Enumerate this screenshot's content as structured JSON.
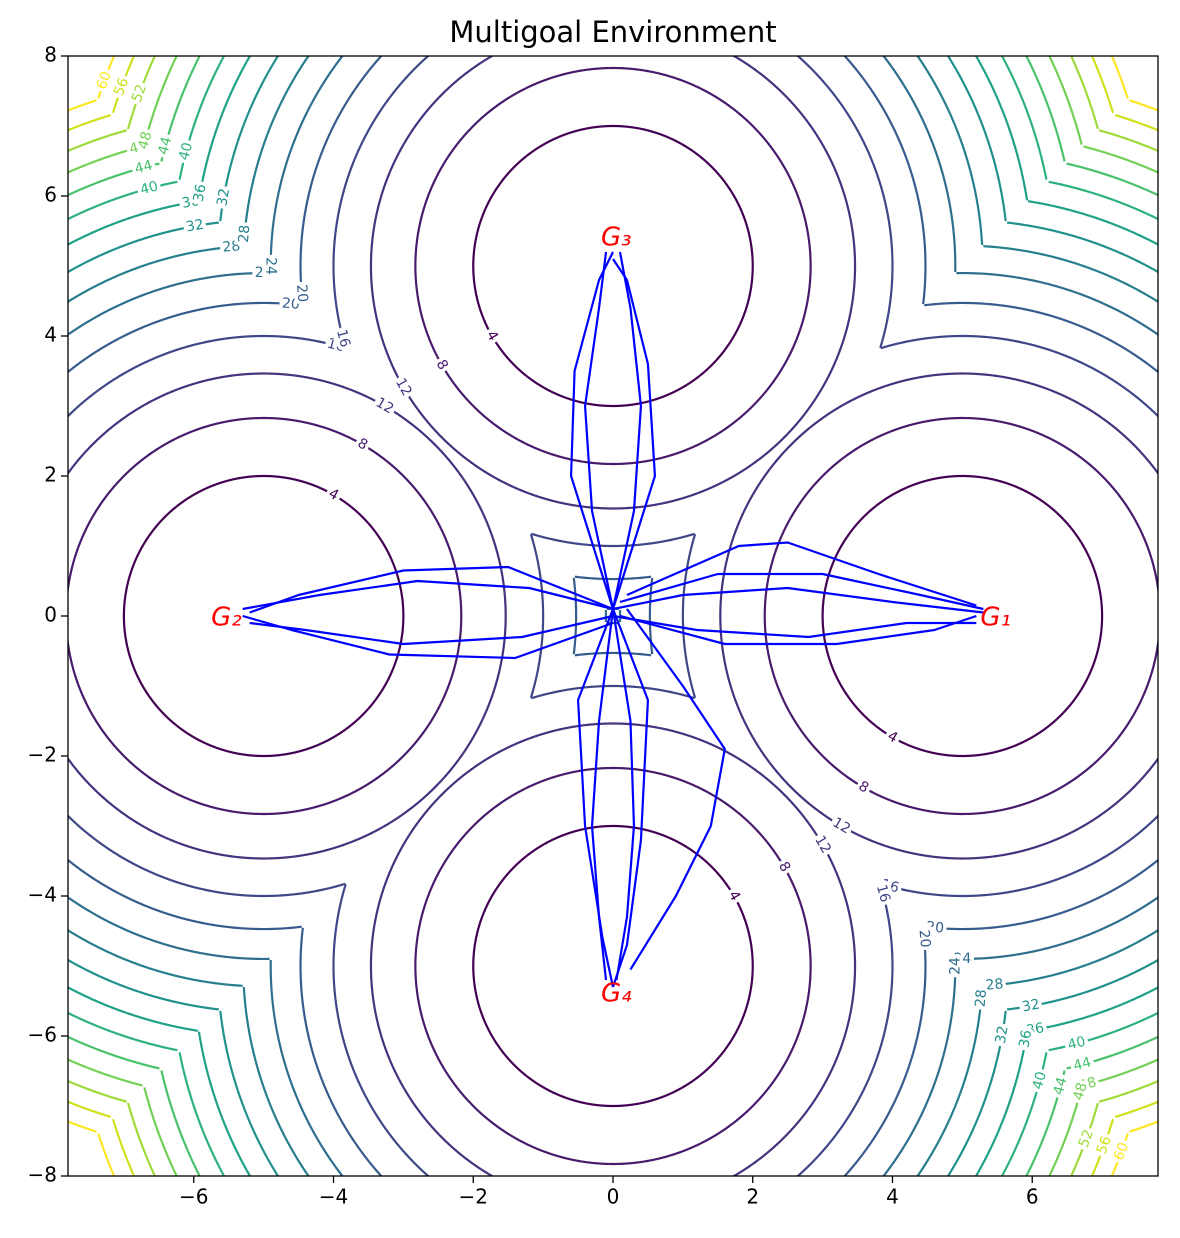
{
  "chart_data": {
    "type": "contour",
    "title": "Multigoal Environment",
    "xlim": [
      -7.8,
      7.8
    ],
    "ylim": [
      -8,
      8
    ],
    "xticks": [
      {
        "value": -6,
        "label": "−6"
      },
      {
        "value": -4,
        "label": "−4"
      },
      {
        "value": -2,
        "label": "−2"
      },
      0,
      2,
      4,
      6
    ],
    "yticks": [
      {
        "value": -8,
        "label": "−8"
      },
      {
        "value": -6,
        "label": "−6"
      },
      {
        "value": -4,
        "label": "−4"
      },
      {
        "value": -2,
        "label": "−2"
      },
      0,
      2,
      4,
      6,
      8
    ],
    "levels": [
      4,
      8,
      12,
      16,
      20,
      24,
      28,
      32,
      36,
      40,
      44,
      48,
      52,
      56,
      60
    ],
    "colors": [
      "#440154",
      "#481b6d",
      "#46327e",
      "#3f4788",
      "#365c8d",
      "#2e6e8e",
      "#277f8e",
      "#21918c",
      "#1fa187",
      "#2db27d",
      "#4ac16d",
      "#73d056",
      "#a0da39",
      "#d0e11c",
      "#fde725"
    ],
    "goals": [
      {
        "label": "G₁",
        "x": 5,
        "y": 0
      },
      {
        "label": "G₂",
        "x": -5,
        "y": 0
      },
      {
        "label": "G₃",
        "x": 0,
        "y": 5
      },
      {
        "label": "G₄",
        "x": 0,
        "y": -5
      }
    ],
    "goal_color": "#ff0000",
    "line_color": "#0000ff",
    "series": [
      {
        "x": [
          0,
          1,
          2.5,
          4,
          5.3
        ],
        "y": [
          0.1,
          0.3,
          0.4,
          0.2,
          0.05
        ]
      },
      {
        "x": [
          0,
          1.2,
          2.8,
          4.2,
          5.2
        ],
        "y": [
          0,
          -0.2,
          -0.3,
          -0.1,
          -0.1
        ]
      },
      {
        "x": [
          0.1,
          1.5,
          3,
          4.4,
          5.3
        ],
        "y": [
          0.2,
          0.6,
          0.6,
          0.3,
          0.1
        ]
      },
      {
        "x": [
          0.1,
          1.6,
          3.2,
          4.6,
          5.2
        ],
        "y": [
          0,
          -0.4,
          -0.4,
          -0.2,
          0
        ]
      },
      {
        "x": [
          0.2,
          1.8,
          2.5,
          3.8,
          5.2
        ],
        "y": [
          0.3,
          1.0,
          1.05,
          0.6,
          0.15
        ]
      },
      {
        "x": [
          0,
          -1.2,
          -2.8,
          -4.2,
          -5.3
        ],
        "y": [
          0.1,
          0.4,
          0.5,
          0.3,
          0.1
        ]
      },
      {
        "x": [
          0,
          -1.3,
          -3,
          -4.4,
          -5.2
        ],
        "y": [
          0,
          -0.3,
          -0.4,
          -0.2,
          -0.1
        ]
      },
      {
        "x": [
          0,
          -1.5,
          -3,
          -4.5,
          -5.2
        ],
        "y": [
          0.1,
          0.7,
          0.65,
          0.3,
          0.05
        ]
      },
      {
        "x": [
          0,
          -1.4,
          -3.2,
          -4.6,
          -5.3
        ],
        "y": [
          -0.1,
          -0.6,
          -0.55,
          -0.2,
          0
        ]
      },
      {
        "x": [
          0,
          -0.3,
          -0.4,
          -0.2,
          -0.1
        ],
        "y": [
          0.1,
          1.5,
          3,
          4.4,
          5.2
        ]
      },
      {
        "x": [
          0,
          0.3,
          0.4,
          0.25,
          0.1
        ],
        "y": [
          0.1,
          1.5,
          3,
          4.4,
          5.2
        ]
      },
      {
        "x": [
          0,
          -0.6,
          -0.55,
          -0.2,
          0
        ],
        "y": [
          0.1,
          2,
          3.5,
          4.8,
          5.2
        ]
      },
      {
        "x": [
          0,
          0.6,
          0.5,
          0.2,
          0
        ],
        "y": [
          0.1,
          2,
          3.6,
          4.8,
          5.1
        ]
      },
      {
        "x": [
          0,
          -0.2,
          -0.3,
          -0.2,
          -0.1
        ],
        "y": [
          0.1,
          -1.5,
          -3,
          -4.3,
          -5.2
        ]
      },
      {
        "x": [
          0,
          0.25,
          0.3,
          0.2,
          0.05
        ],
        "y": [
          0.1,
          -1.5,
          -3,
          -4.3,
          -5.2
        ]
      },
      {
        "x": [
          0,
          -0.5,
          -0.4,
          -0.15,
          0
        ],
        "y": [
          0.1,
          -1.2,
          -3,
          -4.6,
          -5.3
        ]
      },
      {
        "x": [
          0,
          0.5,
          0.4,
          0.2,
          0
        ],
        "y": [
          0.1,
          -1.2,
          -3.2,
          -4.7,
          -5.3
        ]
      },
      {
        "x": [
          0.2,
          1.0,
          1.6,
          1.4,
          0.9,
          0.25
        ],
        "y": [
          0.1,
          -1.0,
          -1.9,
          -3.0,
          -4.0,
          -5.05
        ]
      }
    ]
  }
}
